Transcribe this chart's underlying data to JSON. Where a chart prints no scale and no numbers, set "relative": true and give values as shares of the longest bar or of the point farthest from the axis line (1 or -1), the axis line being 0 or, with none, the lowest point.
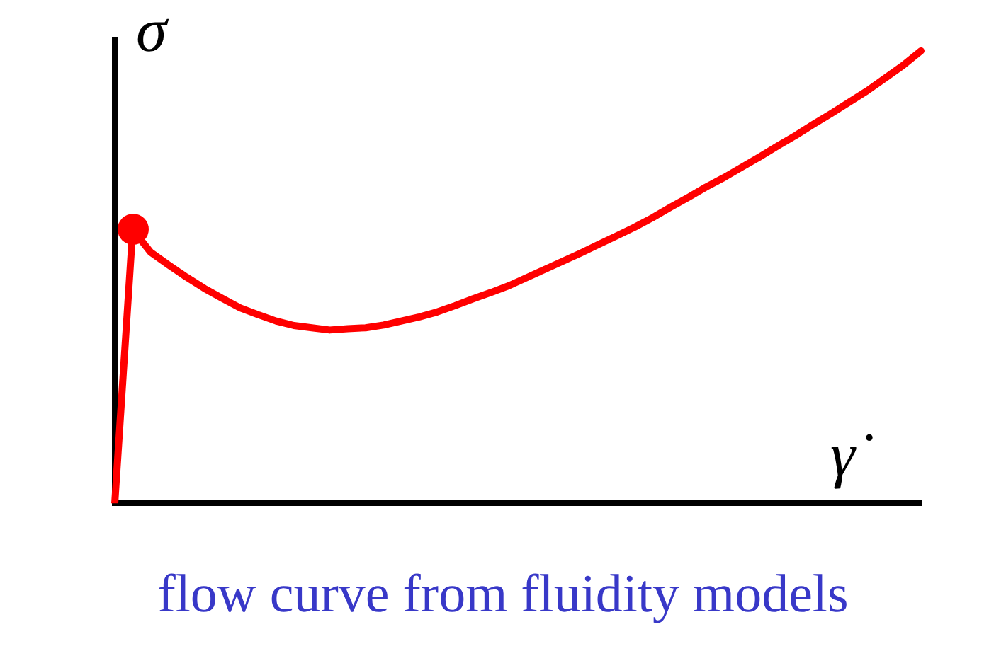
{
  "chart_data": {
    "type": "line",
    "relative": true,
    "xlabel": "γ̇",
    "ylabel": "σ",
    "annotations": [
      "flow curve from fluidity models"
    ],
    "grid": false,
    "legend": false,
    "categories": [
      null,
      null,
      null,
      null,
      null,
      null,
      null,
      null,
      null,
      null,
      null,
      null,
      null,
      null,
      null,
      null,
      null,
      null,
      null,
      null,
      null,
      null,
      null,
      null,
      null,
      null,
      null,
      null,
      null,
      null,
      null,
      null,
      null,
      null,
      null,
      null,
      null,
      null,
      null,
      null,
      null,
      null,
      null,
      null,
      null,
      null
    ],
    "series": [
      {
        "color": "#ff0000",
        "values": [
          0,
          0.605,
          0.555,
          0.527,
          0.5,
          0.475,
          0.453,
          0.432,
          0.417,
          0.403,
          0.393,
          0.388,
          0.383,
          0.386,
          0.388,
          0.394,
          0.403,
          0.412,
          0.423,
          0.437,
          0.452,
          0.466,
          0.481,
          0.499,
          0.517,
          0.535,
          0.553,
          0.572,
          0.591,
          0.61,
          0.631,
          0.654,
          0.676,
          0.699,
          0.72,
          0.743,
          0.766,
          0.79,
          0.813,
          0.838,
          0.862,
          0.887,
          0.912,
          0.94,
          0.968,
          1
        ]
      }
    ]
  }
}
